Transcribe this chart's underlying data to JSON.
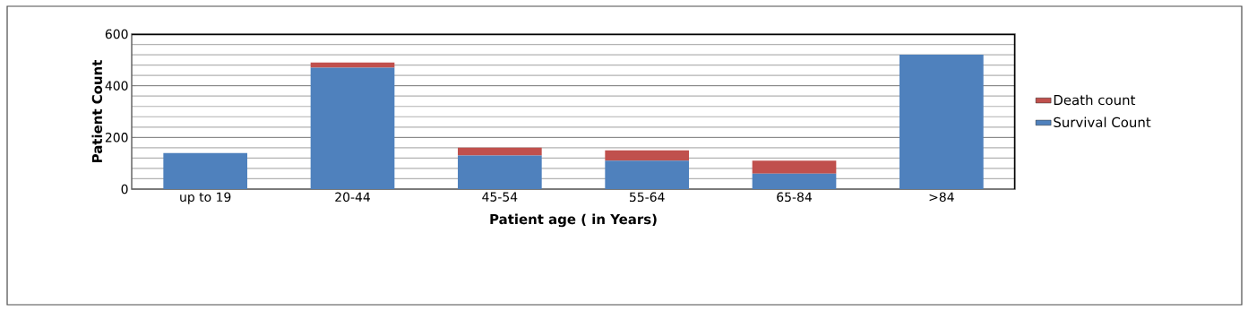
{
  "chart_data": {
    "type": "bar",
    "stacked": true,
    "xlabel": "Patient age ( in Years)",
    "ylabel": "Patient Count",
    "categories": [
      "up to 19",
      "20-44",
      "45-54",
      "55-64",
      "65-84",
      ">84"
    ],
    "series": [
      {
        "name": "Survival Count",
        "color": "#4f81bd",
        "values": [
          140,
          470,
          130,
          110,
          60,
          520
        ]
      },
      {
        "name": "Death  count",
        "color": "#c0504d",
        "values": [
          0,
          20,
          30,
          40,
          50,
          0
        ]
      }
    ],
    "ylim": [
      0,
      600
    ],
    "yticks": [
      0,
      200,
      400,
      600
    ],
    "grid": "y",
    "legend": "right"
  }
}
